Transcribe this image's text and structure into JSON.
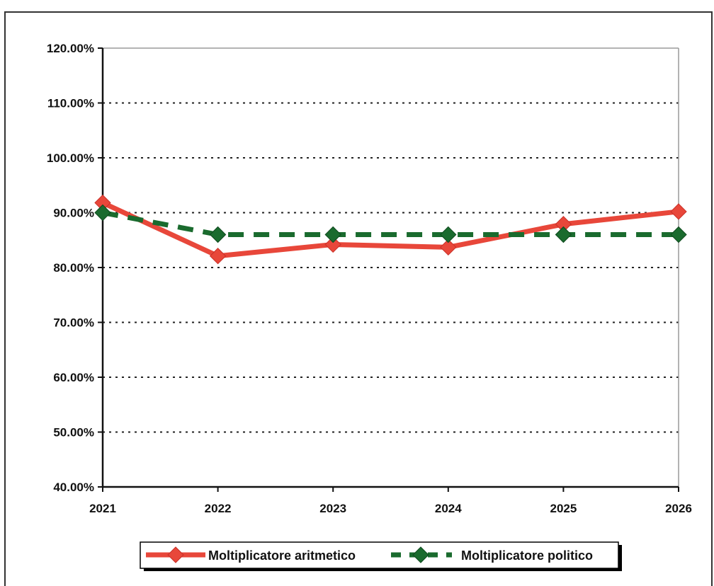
{
  "chart_data": {
    "type": "line",
    "title": "",
    "xlabel": "",
    "ylabel": "",
    "x": [
      "2021",
      "2022",
      "2023",
      "2024",
      "2025",
      "2026"
    ],
    "ylim": [
      0.4,
      1.2
    ],
    "yticks": [
      "40.00%",
      "50.00%",
      "60.00%",
      "70.00%",
      "80.00%",
      "90.00%",
      "100.00%",
      "110.00%",
      "120.00%"
    ],
    "grid": "horizontal dotted",
    "legend_position": "bottom",
    "series": [
      {
        "name": "Moltiplicatore aritmetico",
        "values": [
          0.918,
          0.821,
          0.842,
          0.837,
          0.879,
          0.902
        ],
        "color": "#e8473a",
        "line_style": "solid",
        "marker": "diamond"
      },
      {
        "name": "Moltiplicatore politico",
        "values": [
          0.9,
          0.86,
          0.86,
          0.86,
          0.86,
          0.86
        ],
        "color": "#1a6b2e",
        "line_style": "dashed",
        "marker": "diamond"
      }
    ]
  }
}
